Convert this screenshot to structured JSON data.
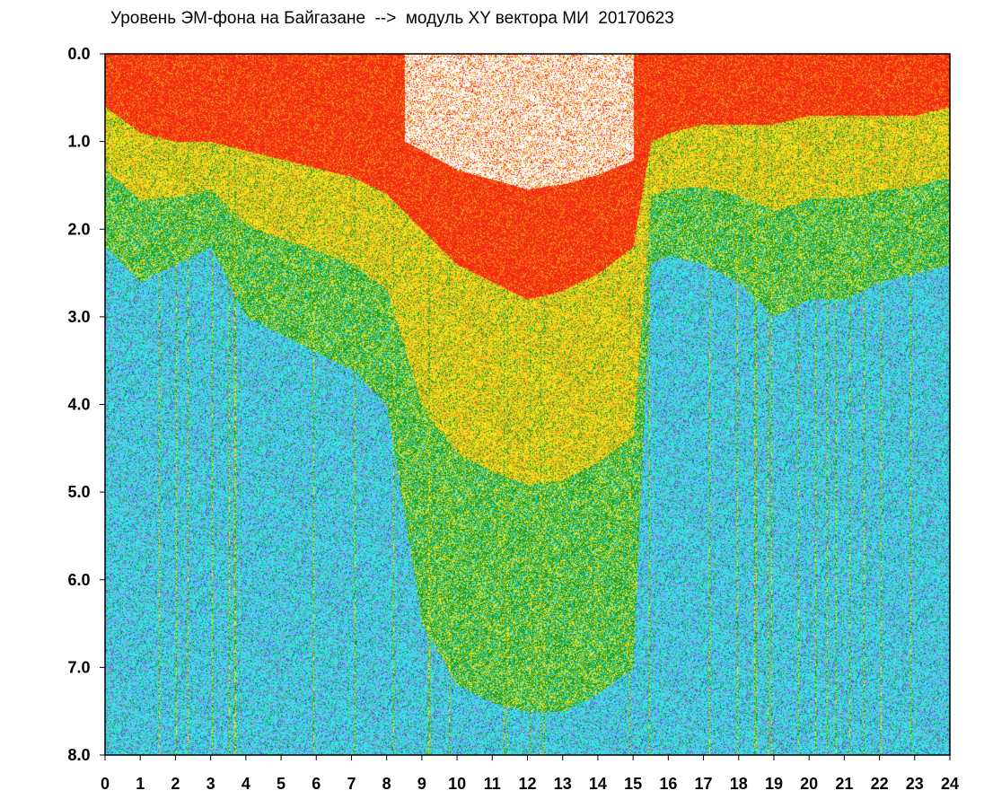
{
  "chart_data": {
    "type": "heatmap",
    "title": "Уровень ЭМ-фона на Байгазане  -->  модуль XY вектора МИ  20170623",
    "xlabel": "",
    "ylabel": "",
    "xlim": [
      0,
      24
    ],
    "ylim": [
      8.0,
      0.0
    ],
    "y_axis_inverted": true,
    "x_ticks": [
      "0",
      "1",
      "2",
      "3",
      "4",
      "5",
      "6",
      "7",
      "8",
      "9",
      "10",
      "11",
      "12",
      "13",
      "14",
      "15",
      "16",
      "17",
      "18",
      "19",
      "20",
      "21",
      "22",
      "23",
      "24"
    ],
    "y_ticks": [
      "0.0",
      "1.0",
      "2.0",
      "3.0",
      "4.0",
      "5.0",
      "6.0",
      "7.0",
      "8.0"
    ],
    "grid": false,
    "color_scale": [
      {
        "name": "sparse",
        "color": "#ffffff"
      },
      {
        "name": "red",
        "color": "#f42c10"
      },
      {
        "name": "orange",
        "color": "#f7a01a"
      },
      {
        "name": "yellow",
        "color": "#f5e21c"
      },
      {
        "name": "green",
        "color": "#1d9e2a"
      },
      {
        "name": "cyan",
        "color": "#36e3e5"
      },
      {
        "name": "violet",
        "color": "#9a8cf0"
      },
      {
        "name": "blue",
        "color": "#3b4ed8"
      }
    ],
    "density_profile": {
      "hours": [
        0,
        1,
        2,
        3,
        4,
        5,
        6,
        7,
        8,
        9,
        10,
        11,
        12,
        13,
        14,
        15,
        15.5,
        16,
        17,
        18,
        19,
        20,
        21,
        22,
        23,
        24
      ],
      "red_zone_depth": [
        0.6,
        0.9,
        1.0,
        1.0,
        1.1,
        1.2,
        1.3,
        1.4,
        1.6,
        2.0,
        2.4,
        2.6,
        2.8,
        2.7,
        2.5,
        2.2,
        1.0,
        0.9,
        0.8,
        0.8,
        0.8,
        0.7,
        0.7,
        0.7,
        0.7,
        0.6
      ],
      "green_zone_depth": [
        2.2,
        2.6,
        2.4,
        2.2,
        3.0,
        3.2,
        3.4,
        3.6,
        4.0,
        6.5,
        7.2,
        7.4,
        7.5,
        7.5,
        7.3,
        7.0,
        2.4,
        2.3,
        2.4,
        2.6,
        3.0,
        2.8,
        2.8,
        2.6,
        2.5,
        2.4
      ],
      "sparse_top_start_hour": 8.5,
      "sparse_top_end_hour": 15.0
    }
  }
}
